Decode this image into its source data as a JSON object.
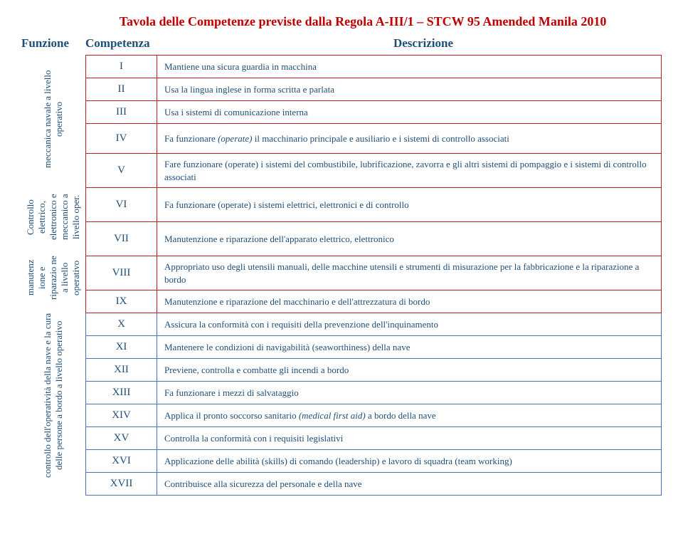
{
  "colors": {
    "title": "#c00000",
    "header": "#1f4e79",
    "body_text": "#1f4e79",
    "border_a": "#bd2024",
    "border_b": "#4472c4"
  },
  "title": "Tavola delle Competenze previste dalla Regola A-III/1 – STCW 95 Amended Manila 2010",
  "headers": {
    "funzione": "Funzione",
    "competenza": "Competenza",
    "descrizione": "Descrizione"
  },
  "groups": [
    {
      "label": "meccanica navale a livello operativo",
      "border_key": "border_a",
      "rows": [
        {
          "roman": "I",
          "desc": "Mantiene una sicura guardia in macchina"
        },
        {
          "roman": "II",
          "desc": "Usa la lingua inglese in forma scritta e parlata"
        },
        {
          "roman": "III",
          "desc": "Usa i sistemi di comunicazione interna"
        },
        {
          "roman": "IV",
          "desc": "Fa funzionare (operate) il macchinario principale e ausiliario e i sistemi di controllo associati",
          "italic_start": "Fa funzionare ",
          "italic": "(operate)",
          "italic_end": " il macchinario principale e ausiliario e i sistemi di controllo associati"
        },
        {
          "roman": "V",
          "desc": "Fare funzionare (operate) i sistemi del combustibile, lubrificazione, zavorra e gli altri sistemi di pompaggio e i sistemi di controllo associati"
        }
      ]
    },
    {
      "label": "Controllo elettrico, elettronico e meccanico a livello oper.",
      "border_key": "border_a",
      "rows": [
        {
          "roman": "VI",
          "desc": "Fa funzionare (operate) i sistemi elettrici, elettronici e di controllo"
        },
        {
          "roman": "VII",
          "desc": "Manutenzione e riparazione dell'apparato elettrico, elettronico"
        }
      ]
    },
    {
      "label": "manutenz ione e riparazio ne a livello operativo",
      "border_key": "border_a",
      "rows": [
        {
          "roman": "VIII",
          "desc": "Appropriato uso degli utensili manuali, delle macchine utensili e strumenti di misurazione per la fabbricazione e la riparazione a bordo"
        },
        {
          "roman": "IX",
          "desc": "Manutenzione e riparazione del macchinario e dell'attrezzatura di bordo"
        }
      ]
    },
    {
      "label": "controllo dell'operatività della nave e la cura delle persone a bordo a livello operativo",
      "border_key": "border_b",
      "rows": [
        {
          "roman": "X",
          "desc": "Assicura la conformità con i requisiti della prevenzione dell'inquinamento"
        },
        {
          "roman": "XI",
          "desc": "Mantenere le condizioni di navigabilità (seaworthiness) della nave"
        },
        {
          "roman": "XII",
          "desc": "Previene, controlla e combatte gli incendi a bordo"
        },
        {
          "roman": "XIII",
          "desc": "Fa funzionare  i mezzi di salvataggio"
        },
        {
          "roman": "XIV",
          "desc": "Applica il pronto soccorso sanitario (medical first aid) a bordo della nave",
          "italic_start": "Applica il pronto soccorso sanitario ",
          "italic": "(medical first aid)",
          "italic_end": " a bordo della nave"
        },
        {
          "roman": "XV",
          "desc": "Controlla la conformità con i requisiti legislativi"
        },
        {
          "roman": "XVI",
          "desc": "Applicazione delle abilità (skills) di comando (leadership) e lavoro di squadra (team working)"
        },
        {
          "roman": "XVII",
          "desc": "Contribuisce alla sicurezza del personale e della nave"
        }
      ]
    }
  ],
  "row_heights": {
    "single": 32,
    "double": 42,
    "tall": 48
  }
}
